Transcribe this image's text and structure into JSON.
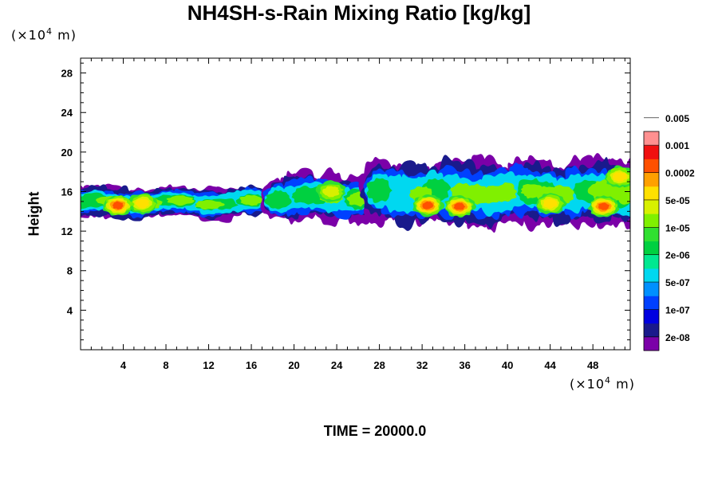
{
  "chart_data": {
    "type": "heatmap",
    "title": "NH4SH-s-Rain Mixing Ratio [kg/kg]",
    "xlabel": "(×10⁴ m)",
    "ylabel": "Height",
    "y_unit_label": "(×10⁴ m)",
    "xlim": [
      0,
      51.5
    ],
    "ylim": [
      0,
      29.5
    ],
    "xticks": [
      4,
      8,
      12,
      16,
      20,
      24,
      28,
      32,
      36,
      40,
      44,
      48
    ],
    "yticks": [
      4,
      8,
      12,
      16,
      20,
      24,
      28
    ],
    "colorbar": {
      "colors": [
        "#7b00a8",
        "#1a1a8c",
        "#0000e0",
        "#0040ff",
        "#0090ff",
        "#00d8f0",
        "#00e890",
        "#00d040",
        "#30e030",
        "#80f000",
        "#d8f000",
        "#ffe000",
        "#ffa000",
        "#ff5000",
        "#f01010",
        "#ff9090"
      ],
      "labels": [
        "2e-08",
        "1e-07",
        "5e-07",
        "2e-06",
        "1e-05",
        "5e-05",
        "0.0002",
        "0.001",
        "0.005"
      ]
    },
    "cloud_regions": [
      {
        "x": [
          0,
          16
        ],
        "y_bottom": 13.8,
        "y_top": 17.2
      },
      {
        "x": [
          18.5,
          26
        ],
        "y_bottom": 13.5,
        "y_top": 18.5
      },
      {
        "x": [
          28,
          51.5
        ],
        "y_bottom": 13.0,
        "y_top": 20.0
      }
    ],
    "peaks": [
      {
        "x": 5.8,
        "y": 14.8,
        "level": "0.0002"
      },
      {
        "x": 3.5,
        "y": 14.6,
        "level": "0.001"
      },
      {
        "x": 23.5,
        "y": 16.0,
        "level": "5e-05"
      },
      {
        "x": 32.5,
        "y": 14.6,
        "level": "0.001"
      },
      {
        "x": 35.5,
        "y": 14.5,
        "level": "0.001"
      },
      {
        "x": 44,
        "y": 14.8,
        "level": "0.0002"
      },
      {
        "x": 49,
        "y": 14.5,
        "level": "0.001"
      },
      {
        "x": 50.5,
        "y": 17.5,
        "level": "0.0002"
      }
    ]
  },
  "time_label": "TIME = 20000.0",
  "colors": {
    "background": "#ffffff",
    "frame": "#000000"
  }
}
